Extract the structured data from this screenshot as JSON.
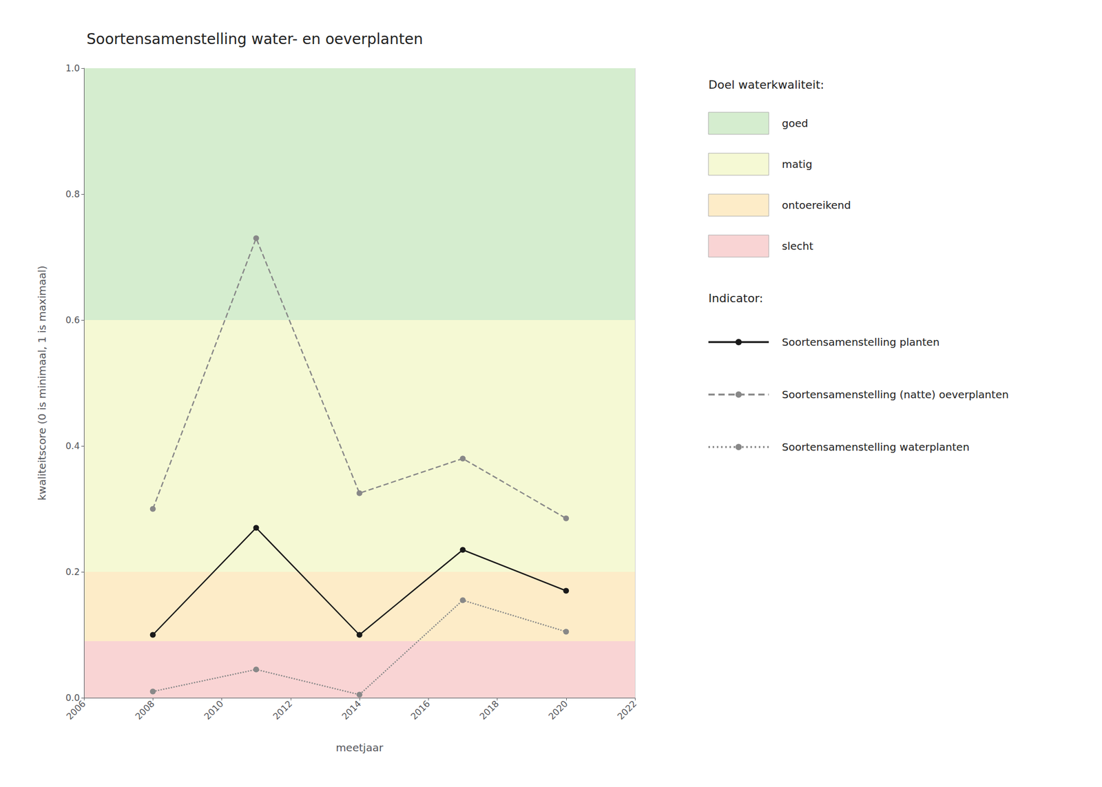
{
  "chart_data": {
    "type": "line",
    "title": "Soortensamenstelling water- en oeverplanten",
    "xlabel": "meetjaar",
    "ylabel": "kwaliteitscore (0 is minimaal, 1 is maximaal)",
    "xlim": [
      2006,
      2022
    ],
    "xticks": [
      2006,
      2008,
      2010,
      2012,
      2014,
      2016,
      2018,
      2020,
      2022
    ],
    "ylim": [
      0.0,
      1.0
    ],
    "yticks": [
      {
        "value": 0.0,
        "label": "0.0"
      },
      0.2,
      0.4,
      0.6,
      0.8,
      {
        "value": 1.0,
        "label": "1.0"
      }
    ],
    "grid": true,
    "zone_legend_title": "Doel waterkwaliteit:",
    "zones": [
      {
        "label": "goed",
        "ymin": 0.6,
        "ymax": 1.0,
        "color": "#d5edcf"
      },
      {
        "label": "matig",
        "ymin": 0.2,
        "ymax": 0.6,
        "color": "#f5f9d4"
      },
      {
        "label": "ontoereikend",
        "ymin": 0.09,
        "ymax": 0.2,
        "color": "#fdecc8"
      },
      {
        "label": "slecht",
        "ymin": 0.0,
        "ymax": 0.09,
        "color": "#f9d4d4"
      }
    ],
    "series_legend_title": "Indicator:",
    "series": [
      {
        "name": "Soortensamenstelling planten",
        "color": "#1a1a1a",
        "line_style": "solid",
        "marker": "circle",
        "x": [
          2008,
          2011,
          2014,
          2017,
          2020
        ],
        "values": [
          0.1,
          0.27,
          0.1,
          0.235,
          0.17
        ]
      },
      {
        "name": "Soortensamenstelling (natte) oeverplanten",
        "color": "#888888",
        "line_style": "dashed",
        "marker": "circle",
        "x": [
          2008,
          2011,
          2014,
          2017,
          2020
        ],
        "values": [
          0.3,
          0.73,
          0.325,
          0.38,
          0.285
        ]
      },
      {
        "name": "Soortensamenstelling waterplanten",
        "color": "#888888",
        "line_style": "dotted",
        "marker": "circle",
        "x": [
          2008,
          2011,
          2014,
          2017,
          2020
        ],
        "values": [
          0.01,
          0.045,
          0.005,
          0.155,
          0.105
        ]
      }
    ]
  }
}
